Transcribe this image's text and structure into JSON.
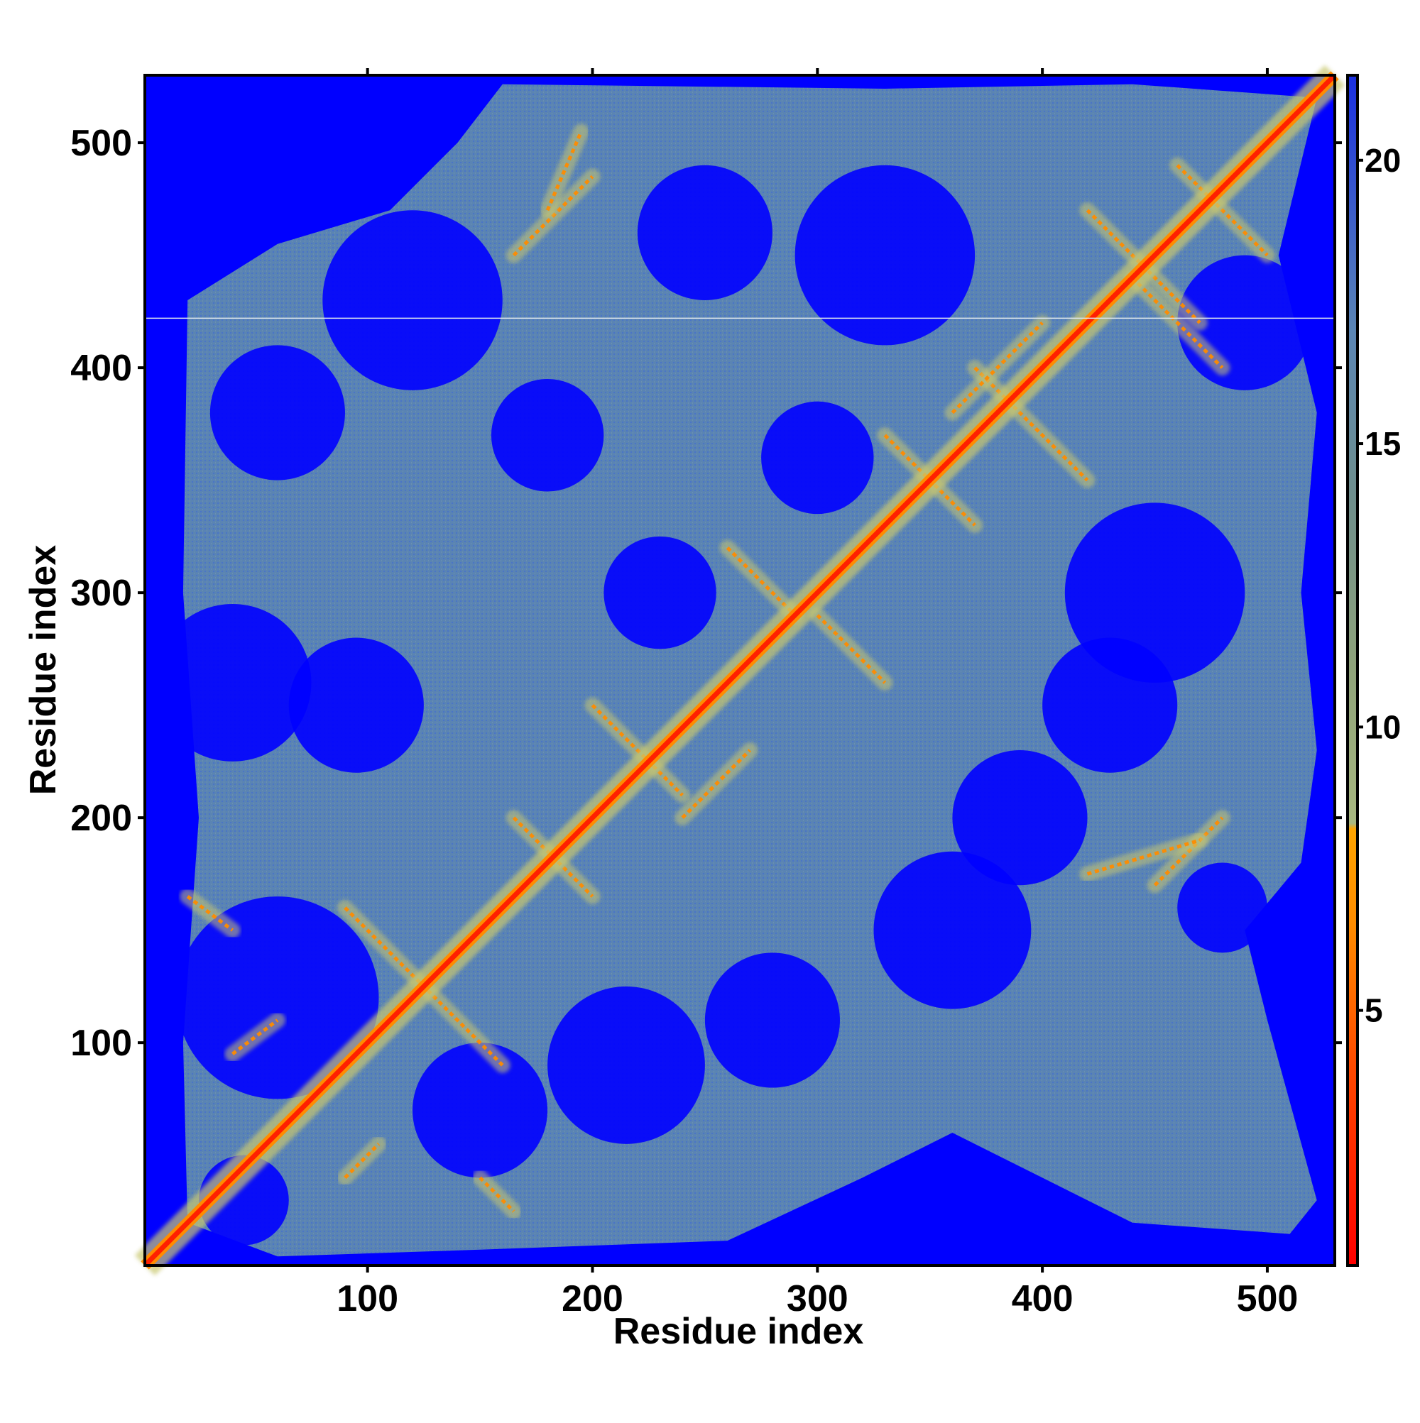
{
  "chart_data": {
    "type": "heatmap",
    "title": "",
    "xlabel": "Residue index",
    "ylabel": "Residue index",
    "xlim": [
      1,
      530
    ],
    "ylim": [
      1,
      530
    ],
    "x_ticks": [
      100,
      200,
      300,
      400,
      500
    ],
    "y_ticks": [
      100,
      200,
      300,
      400,
      500
    ],
    "x_tick_labels": [
      "100",
      "200",
      "300",
      "400",
      "500"
    ],
    "y_tick_labels": [
      "100",
      "200",
      "300",
      "400",
      "500"
    ],
    "colorbar": {
      "range": [
        0.5,
        21.5
      ],
      "ticks": [
        5,
        10,
        15,
        20
      ],
      "tick_labels": [
        "5",
        "10",
        "15",
        "20"
      ],
      "colors": [
        {
          "value": 0.5,
          "color": "#ff0000"
        },
        {
          "value": 4,
          "color": "#ff4a00"
        },
        {
          "value": 6.5,
          "color": "#ff8c00"
        },
        {
          "value": 8.2,
          "color": "#ffa500"
        },
        {
          "value": 8.3,
          "color": "#a8b880"
        },
        {
          "value": 11,
          "color": "#8fa37a"
        },
        {
          "value": 14,
          "color": "#6f8f8c"
        },
        {
          "value": 17,
          "color": "#5b86b5"
        },
        {
          "value": 21.5,
          "color": "#1a2fe0"
        }
      ]
    },
    "background_color": "#0000ff",
    "mid_color": "#5a84b3",
    "contact_color": "#ff2000",
    "cutoff_line_y": 422,
    "description_values": {
      "diagonal": "distance ~0-4 (red) along residue i=j",
      "far_region": "distance >20 (blue)",
      "mid_region": "distance 15-20 (steel blue)"
    },
    "blobs": [
      {
        "x": 45,
        "y": 30,
        "r": 20
      },
      {
        "x": 60,
        "y": 120,
        "r": 45
      },
      {
        "x": 40,
        "y": 260,
        "r": 35
      },
      {
        "x": 95,
        "y": 250,
        "r": 30
      },
      {
        "x": 150,
        "y": 70,
        "r": 30
      },
      {
        "x": 215,
        "y": 90,
        "r": 35
      },
      {
        "x": 280,
        "y": 110,
        "r": 30
      },
      {
        "x": 360,
        "y": 150,
        "r": 35
      },
      {
        "x": 60,
        "y": 380,
        "r": 30
      },
      {
        "x": 120,
        "y": 430,
        "r": 40
      },
      {
        "x": 330,
        "y": 450,
        "r": 40
      },
      {
        "x": 450,
        "y": 300,
        "r": 40
      },
      {
        "x": 490,
        "y": 420,
        "r": 30
      },
      {
        "x": 430,
        "y": 250,
        "r": 30
      },
      {
        "x": 250,
        "y": 460,
        "r": 30
      },
      {
        "x": 390,
        "y": 200,
        "r": 30
      },
      {
        "x": 480,
        "y": 160,
        "r": 20
      },
      {
        "x": 180,
        "y": 370,
        "r": 25
      },
      {
        "x": 300,
        "y": 360,
        "r": 25
      },
      {
        "x": 230,
        "y": 300,
        "r": 25
      }
    ],
    "contact_segments": [
      {
        "x1": 90,
        "y1": 160,
        "x2": 160,
        "y2": 90
      },
      {
        "x1": 20,
        "y1": 165,
        "x2": 40,
        "y2": 150
      },
      {
        "x1": 40,
        "y1": 95,
        "x2": 60,
        "y2": 110
      },
      {
        "x1": 90,
        "y1": 40,
        "x2": 105,
        "y2": 55
      },
      {
        "x1": 150,
        "y1": 40,
        "x2": 165,
        "y2": 25
      },
      {
        "x1": 165,
        "y1": 200,
        "x2": 200,
        "y2": 165
      },
      {
        "x1": 200,
        "y1": 250,
        "x2": 240,
        "y2": 210
      },
      {
        "x1": 240,
        "y1": 200,
        "x2": 270,
        "y2": 230
      },
      {
        "x1": 260,
        "y1": 320,
        "x2": 290,
        "y2": 290
      },
      {
        "x1": 300,
        "y1": 290,
        "x2": 330,
        "y2": 260
      },
      {
        "x1": 330,
        "y1": 370,
        "x2": 370,
        "y2": 330
      },
      {
        "x1": 370,
        "y1": 400,
        "x2": 420,
        "y2": 350
      },
      {
        "x1": 360,
        "y1": 380,
        "x2": 400,
        "y2": 420
      },
      {
        "x1": 440,
        "y1": 440,
        "x2": 480,
        "y2": 400
      },
      {
        "x1": 420,
        "y1": 470,
        "x2": 470,
        "y2": 420
      },
      {
        "x1": 460,
        "y1": 490,
        "x2": 500,
        "y2": 450
      },
      {
        "x1": 165,
        "y1": 450,
        "x2": 200,
        "y2": 485
      },
      {
        "x1": 450,
        "y1": 170,
        "x2": 480,
        "y2": 200
      },
      {
        "x1": 420,
        "y1": 175,
        "x2": 470,
        "y2": 190
      },
      {
        "x1": 180,
        "y1": 470,
        "x2": 195,
        "y2": 505
      }
    ]
  }
}
